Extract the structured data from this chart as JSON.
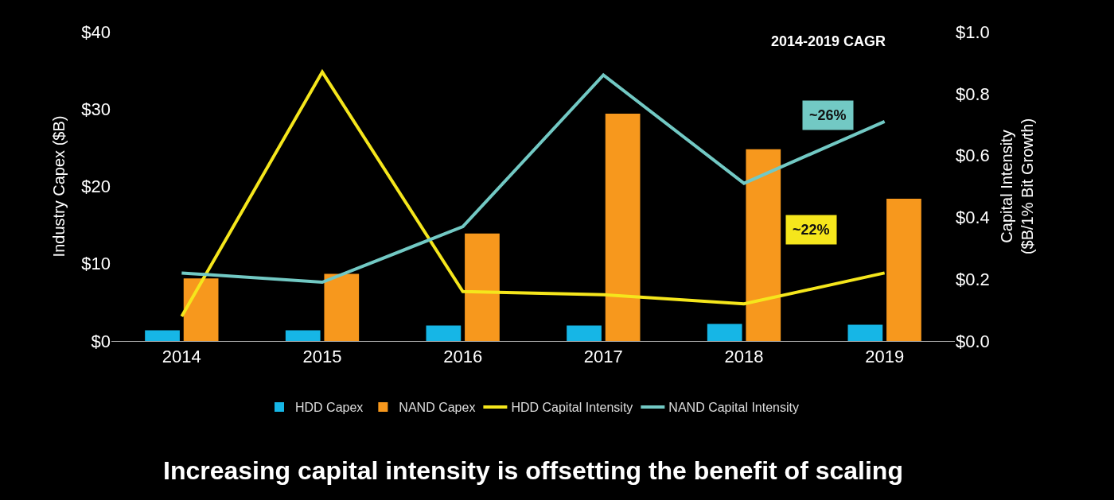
{
  "chart_data": {
    "type": "bar",
    "ylabel": "Industry Capex ($B)",
    "y2label": "Capital Intensity\n($B/1% Bit Growth)",
    "categories": [
      "2014",
      "2015",
      "2016",
      "2017",
      "2018",
      "2019"
    ],
    "series": [
      {
        "name": "HDD Capex",
        "color": "#16b6e6",
        "values": [
          1.4,
          1.4,
          2.0,
          2.0,
          2.2,
          2.1
        ]
      },
      {
        "name": "NAND Capex",
        "color": "#f7981d",
        "values": [
          8.1,
          8.7,
          13.9,
          29.4,
          24.8,
          18.4
        ]
      },
      {
        "name": "HDD Capital Intensity",
        "type": "line",
        "axis": "y2",
        "color": "#f5e61c",
        "values": [
          0.08,
          0.87,
          0.16,
          0.15,
          0.12,
          0.22
        ]
      },
      {
        "name": "NAND Capital Intensity",
        "type": "line",
        "axis": "y2",
        "color": "#72c9c4",
        "values": [
          0.22,
          0.19,
          0.37,
          0.86,
          0.51,
          0.71
        ]
      }
    ],
    "ylim": [
      0,
      40
    ],
    "yticks": [
      {
        "value": 0,
        "label": "$0"
      },
      {
        "value": 10,
        "label": "$10"
      },
      {
        "value": 20,
        "label": "$20"
      },
      {
        "value": 30,
        "label": "$30"
      },
      {
        "value": 40,
        "label": "$40"
      }
    ],
    "y2lim": [
      0,
      1
    ],
    "y2ticks": [
      {
        "value": 0,
        "label": "$0.0"
      },
      {
        "value": 0.2,
        "label": "$0.2"
      },
      {
        "value": 0.4,
        "label": "$0.4"
      },
      {
        "value": 0.6,
        "label": "$0.6"
      },
      {
        "value": 0.8,
        "label": "$0.8"
      },
      {
        "value": 1.0,
        "label": "$1.0"
      }
    ],
    "annotations": [
      "2014-2019 CAGR",
      "~26%",
      "~22%",
      "Increasing capital intensity is offsetting the benefit of scaling"
    ],
    "legend": "bottom",
    "grid": false,
    "marker": "none",
    "line_style": "solid"
  }
}
